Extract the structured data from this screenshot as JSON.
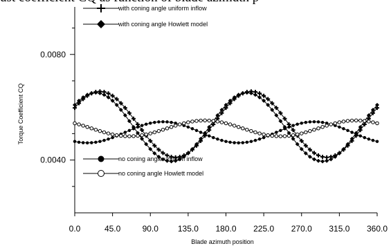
{
  "caption_fragment": "ust coefficient CQ as function of blade azimuth p",
  "chart_data": {
    "type": "line",
    "xlabel": "Blade azimuth position",
    "ylabel": "Torque Coefficient CQ",
    "xlim": [
      0,
      360
    ],
    "ylim": [
      0.002,
      0.0098
    ],
    "x_ticks": [
      "0.0",
      "45.0",
      "90.0",
      "135.0",
      "180.0",
      "225.0",
      "270.0",
      "315.0",
      "360.0"
    ],
    "y_ticks": [
      {
        "value": 0.004,
        "label": "0.0040"
      },
      {
        "value": 0.008,
        "label": "0.0080"
      }
    ],
    "grid": false,
    "legend": [
      {
        "text": "with coning angle  uniform inflow",
        "series": 0
      },
      {
        "text": "with coning angle   Howlett model",
        "series": 1
      },
      {
        "text": "no coning angle  uniform inflow",
        "series": 2
      },
      {
        "text": "no coning angle  Howlett model",
        "series": 3
      }
    ],
    "series": [
      {
        "marker": "plus",
        "mean": 0.00535,
        "amp": 0.00125,
        "phase_deg": 30,
        "harmonic": 2
      },
      {
        "marker": "diamond",
        "mean": 0.00525,
        "amp": 0.0013,
        "phase_deg": 25,
        "harmonic": 2
      },
      {
        "marker": "filled-circle",
        "mean": 0.00505,
        "amp": 0.0004,
        "phase_deg": 105,
        "harmonic": 2
      },
      {
        "marker": "open-circle",
        "mean": 0.0052,
        "amp": 0.0003,
        "phase_deg": 155,
        "harmonic": 2
      }
    ],
    "sample_step_deg": 5
  }
}
